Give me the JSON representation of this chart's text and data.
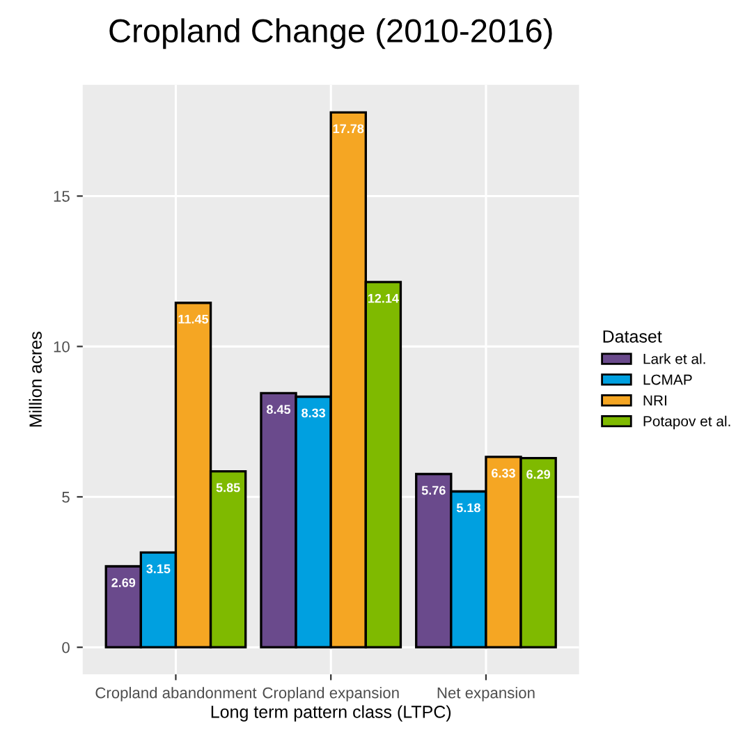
{
  "chart_data": {
    "type": "bar",
    "title": "Cropland Change (2010-2016)",
    "xlabel": "Long term pattern class (LTPC)",
    "ylabel": "Million acres",
    "legend_title": "Dataset",
    "categories": [
      "Cropland abandonment",
      "Cropland expansion",
      "Net expansion"
    ],
    "series": [
      {
        "name": "Lark et al.",
        "color": "#6a4a8c",
        "values": [
          2.69,
          8.45,
          5.76
        ]
      },
      {
        "name": "LCMAP",
        "color": "#00a0e0",
        "values": [
          3.15,
          8.33,
          5.18
        ]
      },
      {
        "name": "NRI",
        "color": "#f5a623",
        "values": [
          11.45,
          17.78,
          6.33
        ]
      },
      {
        "name": "Potapov et al.",
        "color": "#7fba00",
        "values": [
          5.85,
          12.14,
          6.29
        ]
      }
    ],
    "ylim": [
      -0.9,
      18.7
    ],
    "yticks": [
      0,
      5,
      10,
      15
    ],
    "grid": true,
    "legend": "right",
    "data_labels": true
  }
}
